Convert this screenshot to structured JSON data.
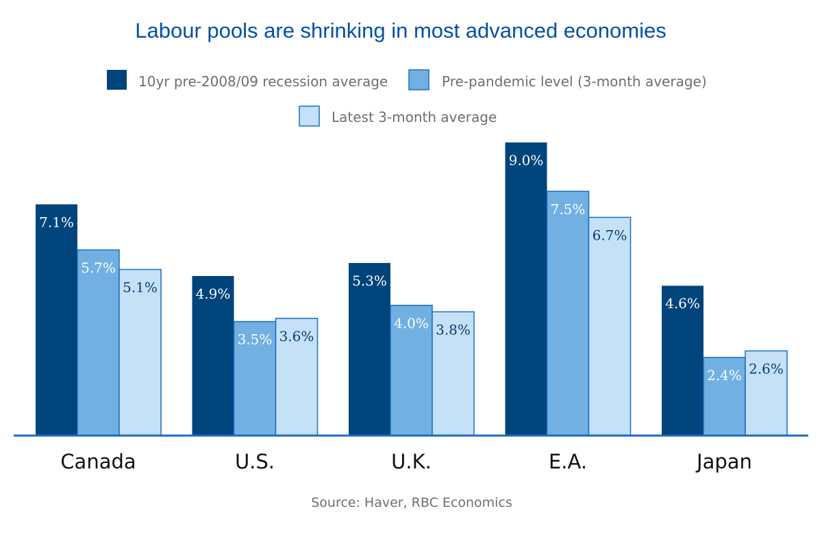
{
  "chart_data": {
    "type": "bar",
    "title": "Labour pools are shrinking in most advanced economies",
    "categories": [
      "Canada",
      "U.S.",
      "U.K.",
      "E.A.",
      "Japan"
    ],
    "series": [
      {
        "name": "10yr pre-2008/09 recession average",
        "color": "#00447c",
        "label_color": "#ffffff",
        "values": [
          7.1,
          4.9,
          5.3,
          9.0,
          4.6
        ]
      },
      {
        "name": "Pre-pandemic level (3-month average)",
        "color": "#72b0e3",
        "label_color": "#ffffff",
        "values": [
          5.7,
          3.5,
          4.0,
          7.5,
          2.4
        ]
      },
      {
        "name": "Latest 3-month average",
        "color": "#c4e1f7",
        "label_color": "#0b3d6b",
        "values": [
          5.1,
          3.6,
          3.8,
          6.7,
          2.6
        ]
      }
    ],
    "value_suffix": "%",
    "xlabel": "",
    "ylabel": "",
    "ylim": [
      0,
      9.0
    ],
    "grid": false,
    "legend_position": "top-center",
    "source": "Source: Haver, RBC Economics",
    "axis_color": "#1a6dc0",
    "bar_border_color": "#1a6dc0"
  }
}
